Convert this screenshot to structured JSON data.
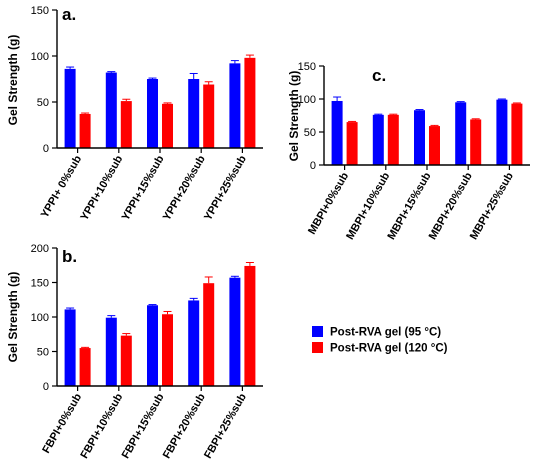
{
  "colors": {
    "series_95": "#0000ff",
    "series_120": "#ff0000"
  },
  "legend": [
    {
      "label": "Post-RVA gel (95 °C)",
      "color": "#0000ff"
    },
    {
      "label": "Post-RVA gel (120 °C)",
      "color": "#ff0000"
    }
  ],
  "chart_data": [
    {
      "type": "bar",
      "panel_label": "a.",
      "ylabel": "Gel Strength  (g)",
      "ylim": [
        0,
        150
      ],
      "yticks": [
        0,
        50,
        100,
        150
      ],
      "categories": [
        "YPPI+ 0%sub",
        "YPPI+10%sub",
        "YPPI+15%sub",
        "YPPI+20%sub",
        "YPPI+25%sub"
      ],
      "series": [
        {
          "name": "Post-RVA gel (95 °C)",
          "values": [
            86,
            82,
            75,
            75,
            92
          ],
          "errors": [
            2,
            1,
            1,
            6,
            3
          ]
        },
        {
          "name": "Post-RVA gel (120 °C)",
          "values": [
            37,
            51,
            48,
            69,
            98
          ],
          "errors": [
            1,
            2,
            1,
            3,
            3
          ]
        }
      ]
    },
    {
      "type": "bar",
      "panel_label": "b.",
      "ylabel": "Gel Strength  (g)",
      "ylim": [
        0,
        200
      ],
      "yticks": [
        0,
        50,
        100,
        150,
        200
      ],
      "categories": [
        "FBPI+0%sub",
        "FBPI+10%sub",
        "FBPI+15%sub",
        "FBPI+20%sub",
        "FBPI+25%sub"
      ],
      "series": [
        {
          "name": "Post-RVA gel (95 °C)",
          "values": [
            111,
            99,
            117,
            124,
            157
          ],
          "errors": [
            2,
            3,
            1,
            3,
            2
          ]
        },
        {
          "name": "Post-RVA gel (120 °C)",
          "values": [
            55,
            73,
            104,
            149,
            174
          ],
          "errors": [
            1,
            3,
            4,
            9,
            5
          ]
        }
      ]
    },
    {
      "type": "bar",
      "panel_label": "c.",
      "ylabel": "Gel Strength  (g)",
      "ylim": [
        0,
        150
      ],
      "yticks": [
        0,
        50,
        100,
        150
      ],
      "categories": [
        "MBPI+0%sub",
        "MBPI+10%sub",
        "MBPI+15%sub",
        "MBPI+20%sub",
        "MBPI+25%sub"
      ],
      "series": [
        {
          "name": "Post-RVA gel (95 °C)",
          "values": [
            97,
            76,
            83,
            95,
            99
          ],
          "errors": [
            6,
            1,
            1,
            1,
            1
          ]
        },
        {
          "name": "Post-RVA gel (120 °C)",
          "values": [
            65,
            76,
            59,
            69,
            93
          ],
          "errors": [
            1,
            1,
            1,
            1,
            1
          ]
        }
      ]
    }
  ]
}
